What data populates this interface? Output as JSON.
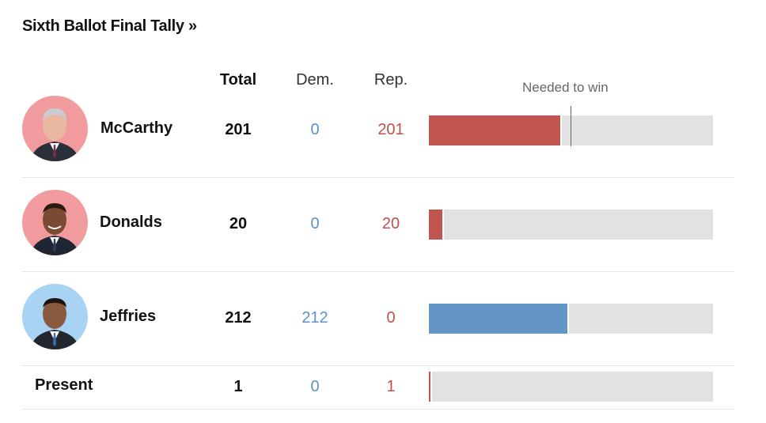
{
  "title": "Sixth Ballot Final Tally »",
  "headers": {
    "total": "Total",
    "dem": "Dem.",
    "rep": "Rep.",
    "needed": "Needed to win"
  },
  "colors": {
    "republican": "#c0564f",
    "democrat": "#6395c7",
    "track": "#e2e2e2",
    "mccarthy_avatar_bg": "#f29b9f",
    "donalds_avatar_bg": "#f29b9f",
    "jeffries_avatar_bg": "#a9d3f2"
  },
  "scale_max": 435,
  "needed_to_win": 217,
  "rows": [
    {
      "name": "McCarthy",
      "total": "201",
      "dem": "0",
      "rep": "201",
      "party": "republican",
      "avatar_icon": "mccarthy-avatar"
    },
    {
      "name": "Donalds",
      "total": "20",
      "dem": "0",
      "rep": "20",
      "party": "republican",
      "avatar_icon": "donalds-avatar"
    },
    {
      "name": "Jeffries",
      "total": "212",
      "dem": "212",
      "rep": "0",
      "party": "democrat",
      "avatar_icon": "jeffries-avatar"
    },
    {
      "name": "Present",
      "total": "1",
      "dem": "0",
      "rep": "1",
      "party": "republican",
      "avatar_icon": ""
    }
  ]
}
